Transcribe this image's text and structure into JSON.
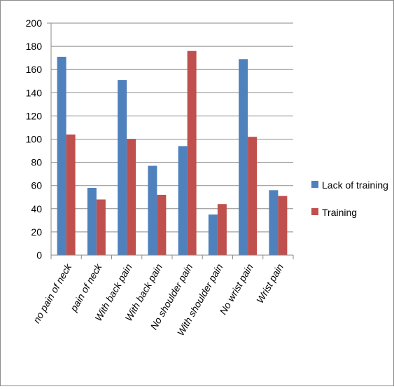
{
  "chart_data": {
    "type": "bar",
    "title": "",
    "xlabel": "",
    "ylabel": "",
    "ylim": [
      0,
      200
    ],
    "yticks": [
      0,
      20,
      40,
      60,
      80,
      100,
      120,
      140,
      160,
      180,
      200
    ],
    "grid": true,
    "legend_position": "right",
    "categories": [
      "no pain of neck",
      "pain of neck",
      "With back pain",
      "With back pain",
      "No shoulder pain",
      "With shoulder pain",
      "No wrist pain",
      "Wrist pain"
    ],
    "series": [
      {
        "name": "Lack of training",
        "color": "#4f81bd",
        "values": [
          171,
          58,
          151,
          77,
          94,
          35,
          169,
          56
        ]
      },
      {
        "name": "Training",
        "color": "#c0504d",
        "values": [
          104,
          48,
          100,
          52,
          176,
          44,
          102,
          51
        ]
      }
    ]
  }
}
